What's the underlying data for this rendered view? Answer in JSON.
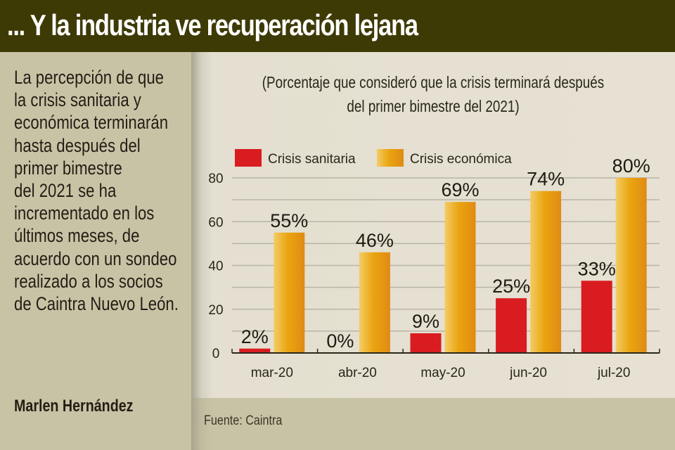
{
  "header": {
    "title": "... Y la industria ve recuperación lejana"
  },
  "sidebar": {
    "lines": [
      "La percepción de que",
      "la crisis sanitaria y",
      "económica terminarán",
      "hasta después del",
      "primer bimestre",
      "del 2021 se ha",
      "incrementado en los",
      "últimos meses, de",
      "acuerdo con un sondeo",
      "realizado a los socios",
      "de Caintra Nuevo León."
    ],
    "author": "Marlen Hernández"
  },
  "footer": {
    "source": "Fuente: Caintra"
  },
  "colors": {
    "sanitaria": "#d91c1f",
    "economica_light": "#f3cc66",
    "economica_mid": "#eaa510",
    "economica_dark": "#e08a14",
    "grid": "#b9b5a6",
    "axis": "#2a261a"
  },
  "chart_data": {
    "type": "bar",
    "title": "",
    "subtitle_lines": [
      "(Porcentaje que consideró que la crisis terminará después",
      "del primer bimestre del 2021)"
    ],
    "categories": [
      "mar-20",
      "abr-20",
      "may-20",
      "jun-20",
      "jul-20"
    ],
    "series": [
      {
        "name": "Crisis sanitaria",
        "values": [
          2,
          0,
          9,
          25,
          33
        ],
        "labels": [
          "2%",
          "0%",
          "9%",
          "25%",
          "33%"
        ]
      },
      {
        "name": "Crisis económica",
        "values": [
          55,
          46,
          69,
          74,
          80
        ],
        "labels": [
          "55%",
          "46%",
          "69%",
          "74%",
          "80%"
        ]
      }
    ],
    "xlabel": "",
    "ylabel": "",
    "ylim": [
      0,
      80
    ],
    "yticks": [
      0,
      20,
      40,
      60,
      80
    ],
    "gridlines_every": 10,
    "grid": true,
    "legend": "top-left"
  }
}
